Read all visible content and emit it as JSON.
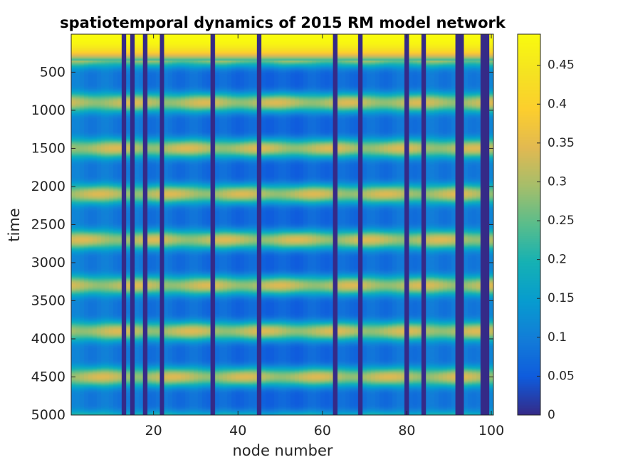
{
  "chart_data": {
    "type": "heatmap",
    "title": "spatiotemporal dynamics of 2015 RM model network",
    "xlabel": "node number",
    "ylabel": "time",
    "xlim": [
      0.5,
      100.5
    ],
    "ylim": [
      1,
      5000
    ],
    "y_reversed": true,
    "n_nodes": 100,
    "n_time": 5000,
    "x_ticks": [
      20,
      40,
      60,
      80,
      100
    ],
    "x_tick_labels": [
      "20",
      "40",
      "60",
      "80",
      "100"
    ],
    "y_ticks": [
      500,
      1000,
      1500,
      2000,
      2500,
      3000,
      3500,
      4000,
      4500,
      5000
    ],
    "y_tick_labels": [
      "500",
      "1000",
      "1500",
      "2000",
      "2500",
      "3000",
      "3500",
      "4000",
      "4500",
      "5000"
    ],
    "colorbar": {
      "colormap": "parula",
      "clim": [
        0,
        0.49
      ],
      "ticks": [
        0,
        0.05,
        0.1,
        0.15,
        0.2,
        0.25,
        0.3,
        0.35,
        0.4,
        0.45
      ],
      "tick_labels": [
        "0",
        "0.05",
        "0.1",
        "0.15",
        "0.2",
        "0.25",
        "0.3",
        "0.35",
        "0.4",
        "0.45"
      ]
    },
    "dead_nodes": [
      13,
      15,
      18,
      22,
      34,
      45,
      63,
      69,
      80,
      84,
      92,
      93,
      98,
      99
    ],
    "initial_value": 0.49,
    "transient_end_time": 350,
    "oscillation_period": 600,
    "first_trough_time": 600,
    "low_value_range": [
      0.04,
      0.1
    ],
    "peak_value_range": [
      0.28,
      0.34
    ]
  }
}
